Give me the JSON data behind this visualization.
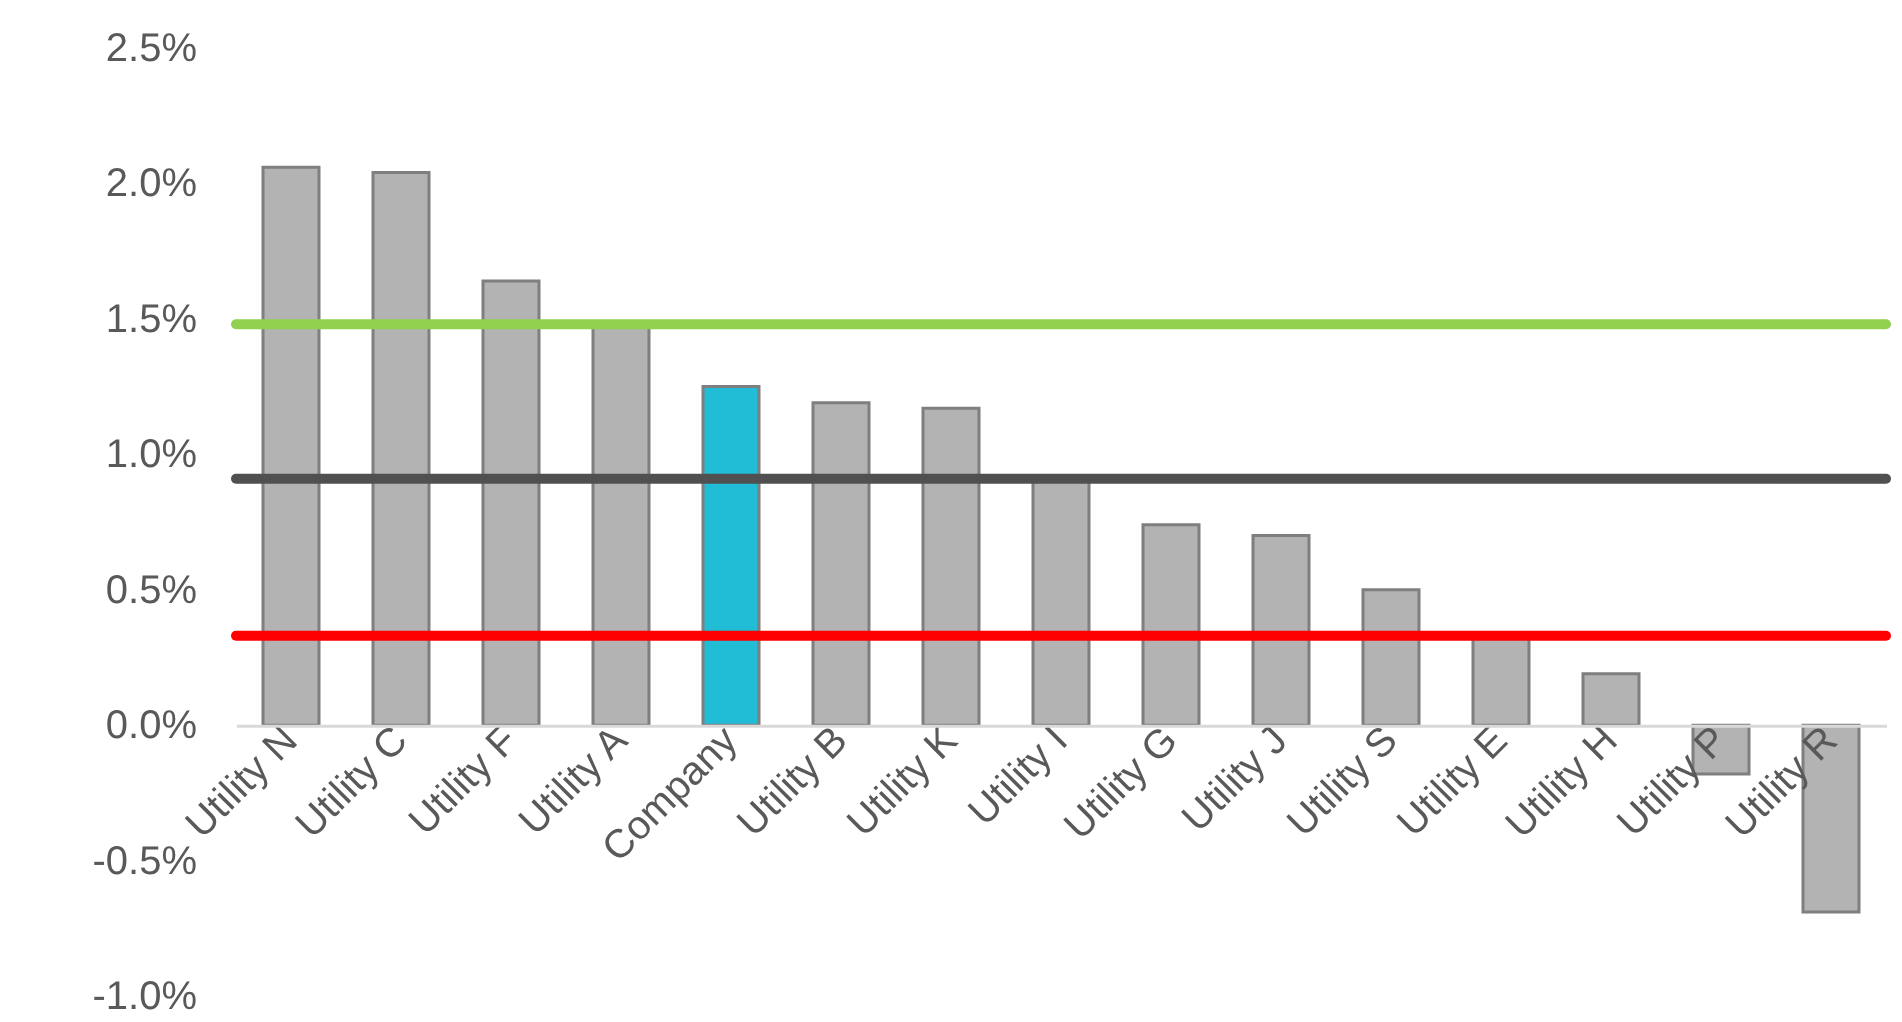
{
  "chart_data": {
    "type": "bar",
    "categories": [
      "Utility N",
      "Utility C",
      "Utility F",
      "Utility A",
      "Company",
      "Utility B",
      "Utility K",
      "Utility I",
      "Utility G",
      "Utility J",
      "Utility S",
      "Utility E",
      "Utility H",
      "Utility P",
      "Utility R"
    ],
    "values": [
      0.0206,
      0.0204,
      0.0164,
      0.0149,
      0.0125,
      0.0119,
      0.0117,
      0.0091,
      0.0074,
      0.007,
      0.005,
      0.0033,
      0.0019,
      -0.0018,
      -0.0069
    ],
    "colors": [
      "#b3b3b3",
      "#b3b3b3",
      "#b3b3b3",
      "#b3b3b3",
      "#21bcd6",
      "#b3b3b3",
      "#b3b3b3",
      "#b3b3b3",
      "#b3b3b3",
      "#b3b3b3",
      "#b3b3b3",
      "#b3b3b3",
      "#b3b3b3",
      "#b3b3b3",
      "#b3b3b3"
    ],
    "ylim": [
      -0.01,
      0.025
    ],
    "yticks": [
      {
        "value": -0.01,
        "label": "-1.0%"
      },
      {
        "value": -0.005,
        "label": "-0.5%"
      },
      {
        "value": 0,
        "label": "0.0%"
      },
      {
        "value": 0.005,
        "label": "0.5%"
      },
      {
        "value": 0.01,
        "label": "1.0%"
      },
      {
        "value": 0.015,
        "label": "1.5%"
      },
      {
        "value": 0.02,
        "label": "2.0%"
      },
      {
        "value": 0.025,
        "label": "2.5%"
      }
    ],
    "ref_lines": [
      {
        "axis": "y",
        "value": 0.0148,
        "color": "#92d050"
      },
      {
        "axis": "y",
        "value": 0.0091,
        "color": "#505050"
      },
      {
        "axis": "y",
        "value": 0.0033,
        "color": "#ff0000"
      }
    ],
    "grid": false
  }
}
